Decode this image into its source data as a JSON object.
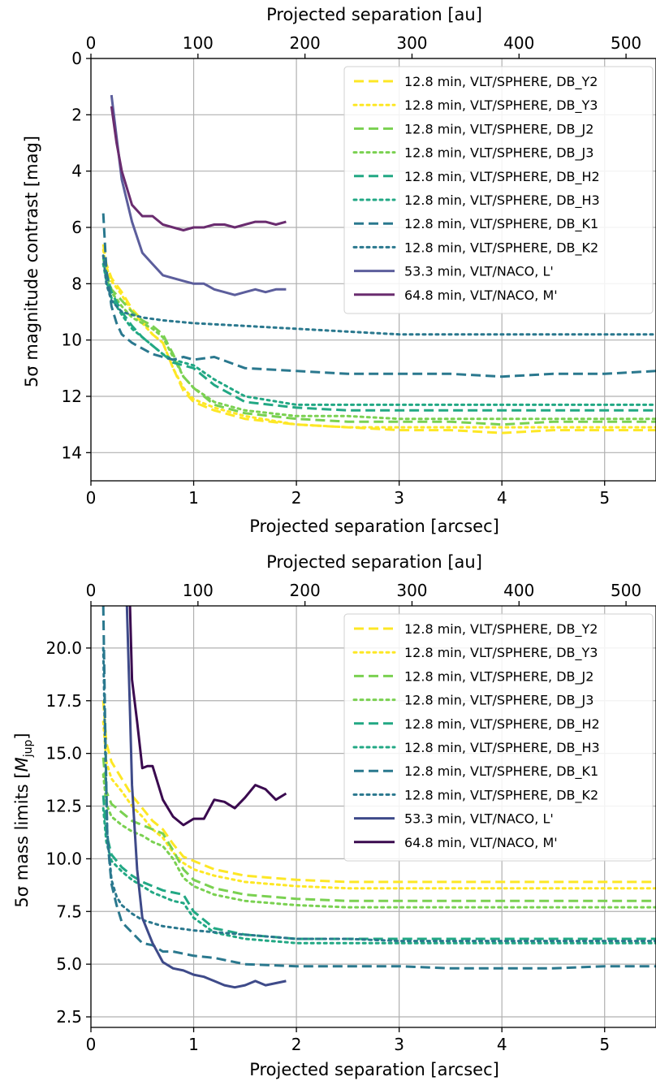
{
  "chart_data": [
    {
      "type": "line",
      "name": "contrast",
      "xlabel": "Projected separation [arcsec]",
      "x2label": "Projected separation [au]",
      "ylabel": "5σ magnitude contrast [mag]",
      "xlim": [
        0,
        5.5
      ],
      "ylim": [
        15,
        0
      ],
      "y_inverted": true,
      "x_ticks": [
        0,
        1,
        2,
        3,
        4,
        5
      ],
      "y_ticks": [
        0,
        2,
        4,
        6,
        8,
        10,
        12,
        14
      ],
      "x2_ticks": [
        0,
        100,
        200,
        300,
        400,
        500
      ],
      "au_per_arcsec": 96.0,
      "grid": true,
      "legend_position": "top-right",
      "series": [
        {
          "name": "12.8 min, VLT/SPHERE, DB_Y2",
          "color": "#fde725",
          "dash": "dashed",
          "x": [
            0.12,
            0.15,
            0.2,
            0.3,
            0.4,
            0.5,
            0.6,
            0.7,
            0.8,
            0.9,
            1.0,
            1.2,
            1.5,
            2.0,
            2.5,
            3.0,
            3.5,
            4.0,
            4.5,
            5.0,
            5.5
          ],
          "y": [
            6.6,
            7.3,
            7.8,
            8.3,
            8.9,
            9.3,
            9.8,
            10.1,
            11.0,
            11.8,
            12.2,
            12.5,
            12.8,
            13.0,
            13.1,
            13.2,
            13.2,
            13.3,
            13.2,
            13.2,
            13.2
          ]
        },
        {
          "name": "12.8 min, VLT/SPHERE, DB_Y3",
          "color": "#fde725",
          "dash": "dotted",
          "x": [
            0.12,
            0.15,
            0.2,
            0.3,
            0.4,
            0.5,
            0.6,
            0.7,
            0.8,
            0.9,
            1.0,
            1.2,
            1.5,
            2.0,
            2.5,
            3.0,
            3.5,
            4.0,
            4.5,
            5.0,
            5.5
          ],
          "y": [
            6.8,
            7.4,
            7.9,
            8.4,
            9.0,
            9.4,
            9.8,
            10.1,
            11.0,
            11.7,
            12.1,
            12.4,
            12.7,
            13.0,
            13.1,
            13.1,
            13.1,
            13.1,
            13.1,
            13.1,
            13.1
          ]
        },
        {
          "name": "12.8 min, VLT/SPHERE, DB_J2",
          "color": "#7ad151",
          "dash": "dashed",
          "x": [
            0.12,
            0.15,
            0.2,
            0.3,
            0.4,
            0.5,
            0.6,
            0.7,
            0.8,
            0.9,
            1.0,
            1.2,
            1.5,
            2.0,
            2.5,
            3.0,
            3.5,
            4.0,
            4.5,
            5.0,
            5.5
          ],
          "y": [
            7.1,
            7.6,
            8.2,
            8.6,
            9.0,
            9.3,
            9.5,
            9.8,
            10.5,
            11.3,
            11.7,
            12.3,
            12.6,
            12.8,
            12.9,
            12.9,
            12.9,
            13.0,
            12.9,
            12.9,
            12.9
          ]
        },
        {
          "name": "12.8 min, VLT/SPHERE, DB_J3",
          "color": "#7ad151",
          "dash": "dotted",
          "x": [
            0.12,
            0.15,
            0.2,
            0.3,
            0.4,
            0.5,
            0.6,
            0.7,
            0.8,
            0.9,
            1.0,
            1.2,
            1.5,
            2.0,
            2.5,
            3.0,
            3.5,
            4.0,
            4.5,
            5.0,
            5.5
          ],
          "y": [
            7.3,
            7.8,
            8.3,
            8.8,
            9.2,
            9.4,
            9.6,
            9.9,
            10.6,
            11.3,
            11.7,
            12.2,
            12.5,
            12.7,
            12.7,
            12.8,
            12.8,
            12.8,
            12.8,
            12.8,
            12.8
          ]
        },
        {
          "name": "12.8 min, VLT/SPHERE, DB_H2",
          "color": "#22a884",
          "dash": "dashed",
          "x": [
            0.12,
            0.15,
            0.2,
            0.3,
            0.4,
            0.5,
            0.6,
            0.7,
            0.8,
            0.9,
            1.0,
            1.2,
            1.5,
            2.0,
            2.5,
            3.0,
            3.5,
            4.0,
            4.5,
            5.0,
            5.5
          ],
          "y": [
            7.0,
            7.6,
            8.3,
            9.0,
            9.5,
            9.9,
            10.2,
            10.5,
            10.8,
            10.9,
            11.0,
            11.6,
            12.2,
            12.4,
            12.5,
            12.5,
            12.5,
            12.5,
            12.5,
            12.5,
            12.5
          ]
        },
        {
          "name": "12.8 min, VLT/SPHERE, DB_H3",
          "color": "#22a884",
          "dash": "dotted",
          "x": [
            0.12,
            0.15,
            0.2,
            0.3,
            0.4,
            0.5,
            0.6,
            0.7,
            0.8,
            0.9,
            1.0,
            1.2,
            1.5,
            2.0,
            2.5,
            3.0,
            3.5,
            4.0,
            4.5,
            5.0,
            5.5
          ],
          "y": [
            7.3,
            7.9,
            8.5,
            9.1,
            9.6,
            9.9,
            10.2,
            10.5,
            10.7,
            10.8,
            10.9,
            11.4,
            12.0,
            12.3,
            12.3,
            12.3,
            12.3,
            12.3,
            12.3,
            12.3,
            12.3
          ]
        },
        {
          "name": "12.8 min, VLT/SPHERE, DB_K1",
          "color": "#2a788e",
          "dash": "dashed",
          "x": [
            0.12,
            0.15,
            0.2,
            0.25,
            0.3,
            0.4,
            0.5,
            0.6,
            0.7,
            0.8,
            0.9,
            1.0,
            1.2,
            1.5,
            2.0,
            2.5,
            3.0,
            3.5,
            4.0,
            4.5,
            5.0,
            5.5
          ],
          "y": [
            5.5,
            7.5,
            8.8,
            9.4,
            9.8,
            10.1,
            10.3,
            10.5,
            10.6,
            10.7,
            10.6,
            10.7,
            10.6,
            11.0,
            11.1,
            11.2,
            11.2,
            11.2,
            11.3,
            11.2,
            11.2,
            11.1
          ]
        },
        {
          "name": "12.8 min, VLT/SPHERE, DB_K2",
          "color": "#2a788e",
          "dash": "dotted",
          "x": [
            0.12,
            0.15,
            0.2,
            0.3,
            0.4,
            0.5,
            0.7,
            1.0,
            1.5,
            2.0,
            2.5,
            3.0,
            3.5,
            4.0,
            4.5,
            5.0,
            5.5
          ],
          "y": [
            7.0,
            8.0,
            8.6,
            9.0,
            9.1,
            9.2,
            9.3,
            9.4,
            9.5,
            9.6,
            9.7,
            9.8,
            9.8,
            9.8,
            9.8,
            9.8,
            9.8
          ]
        },
        {
          "name": "53.3 min, VLT/NACO, L'",
          "color": "#5c5e9c",
          "dash": "solid",
          "x": [
            0.2,
            0.25,
            0.3,
            0.4,
            0.5,
            0.6,
            0.7,
            0.8,
            0.9,
            1.0,
            1.1,
            1.2,
            1.3,
            1.4,
            1.5,
            1.6,
            1.7,
            1.8,
            1.9
          ],
          "y": [
            1.3,
            2.8,
            4.3,
            5.8,
            6.9,
            7.3,
            7.7,
            7.8,
            7.9,
            8.0,
            8.0,
            8.2,
            8.3,
            8.4,
            8.3,
            8.2,
            8.3,
            8.2,
            8.2
          ]
        },
        {
          "name": "64.8 min, VLT/NACO, M'",
          "color": "#6a2c6f",
          "dash": "solid",
          "x": [
            0.2,
            0.25,
            0.3,
            0.4,
            0.5,
            0.6,
            0.7,
            0.8,
            0.9,
            1.0,
            1.1,
            1.2,
            1.3,
            1.4,
            1.5,
            1.6,
            1.7,
            1.8,
            1.9
          ],
          "y": [
            1.7,
            3.0,
            4.0,
            5.2,
            5.6,
            5.6,
            5.9,
            6.0,
            6.1,
            6.0,
            6.0,
            5.9,
            5.9,
            6.0,
            5.9,
            5.8,
            5.8,
            5.9,
            5.8
          ]
        }
      ]
    },
    {
      "type": "line",
      "name": "mass",
      "xlabel": "Projected separation [arcsec]",
      "x2label": "Projected separation [au]",
      "ylabel_main": "5σ mass limits [",
      "ylabel_sym": "M",
      "ylabel_sub": "jup",
      "ylabel_end": "]",
      "xlim": [
        0,
        5.5
      ],
      "ylim": [
        2,
        22
      ],
      "y_inverted": false,
      "x_ticks": [
        0,
        1,
        2,
        3,
        4,
        5
      ],
      "y_ticks": [
        2.5,
        5.0,
        7.5,
        10.0,
        12.5,
        15.0,
        17.5,
        20.0
      ],
      "x2_ticks": [
        0,
        100,
        200,
        300,
        400,
        500
      ],
      "au_per_arcsec": 96.0,
      "grid": true,
      "legend_position": "top-right",
      "series": [
        {
          "name": "12.8 min, VLT/SPHERE, DB_Y2",
          "color": "#fde725",
          "dash": "dashed",
          "x": [
            0.12,
            0.15,
            0.2,
            0.3,
            0.4,
            0.5,
            0.6,
            0.7,
            0.8,
            0.9,
            1.0,
            1.2,
            1.5,
            2.0,
            2.5,
            3.0,
            3.5,
            4.0,
            4.5,
            5.0,
            5.5
          ],
          "y": [
            17.5,
            15.5,
            14.6,
            13.8,
            13.0,
            12.4,
            11.8,
            11.4,
            10.7,
            10.1,
            9.9,
            9.5,
            9.2,
            9.0,
            8.9,
            8.9,
            8.9,
            8.9,
            8.9,
            8.9,
            8.9
          ]
        },
        {
          "name": "12.8 min, VLT/SPHERE, DB_Y3",
          "color": "#fde725",
          "dash": "dotted",
          "x": [
            0.12,
            0.15,
            0.2,
            0.3,
            0.4,
            0.5,
            0.6,
            0.7,
            0.8,
            0.9,
            1.0,
            1.2,
            1.5,
            2.0,
            2.5,
            3.0,
            3.5,
            4.0,
            4.5,
            5.0,
            5.5
          ],
          "y": [
            16.5,
            14.6,
            13.8,
            13.2,
            12.5,
            12.0,
            11.4,
            11.0,
            10.3,
            9.8,
            9.5,
            9.2,
            8.9,
            8.7,
            8.6,
            8.6,
            8.6,
            8.6,
            8.6,
            8.6,
            8.6
          ]
        },
        {
          "name": "12.8 min, VLT/SPHERE, DB_J2",
          "color": "#7ad151",
          "dash": "dashed",
          "x": [
            0.12,
            0.15,
            0.2,
            0.3,
            0.4,
            0.5,
            0.6,
            0.7,
            0.8,
            0.9,
            1.0,
            1.2,
            1.5,
            2.0,
            2.5,
            3.0,
            3.5,
            4.0,
            4.5,
            5.0,
            5.5
          ],
          "y": [
            14.8,
            13.2,
            12.6,
            12.2,
            11.8,
            11.6,
            11.4,
            11.2,
            10.4,
            9.5,
            9.0,
            8.6,
            8.3,
            8.1,
            8.0,
            8.0,
            8.0,
            8.0,
            8.0,
            8.0,
            8.0
          ]
        },
        {
          "name": "12.8 min, VLT/SPHERE, DB_J3",
          "color": "#7ad151",
          "dash": "dotted",
          "x": [
            0.12,
            0.15,
            0.2,
            0.3,
            0.4,
            0.5,
            0.6,
            0.7,
            0.8,
            0.9,
            1.0,
            1.2,
            1.5,
            2.0,
            2.5,
            3.0,
            3.5,
            4.0,
            4.5,
            5.0,
            5.5
          ],
          "y": [
            14.0,
            12.6,
            12.0,
            11.6,
            11.3,
            11.1,
            10.8,
            10.6,
            10.0,
            9.1,
            8.7,
            8.3,
            8.0,
            7.8,
            7.7,
            7.7,
            7.7,
            7.7,
            7.7,
            7.7,
            7.7
          ]
        },
        {
          "name": "12.8 min, VLT/SPHERE, DB_H2",
          "color": "#22a884",
          "dash": "dashed",
          "x": [
            0.12,
            0.15,
            0.2,
            0.3,
            0.4,
            0.5,
            0.6,
            0.7,
            0.8,
            0.9,
            1.0,
            1.2,
            1.5,
            2.0,
            2.5,
            3.0,
            3.5,
            4.0,
            4.5,
            5.0,
            5.5
          ],
          "y": [
            13.0,
            11.2,
            10.2,
            9.6,
            9.2,
            8.9,
            8.7,
            8.5,
            8.4,
            8.3,
            7.5,
            6.7,
            6.4,
            6.2,
            6.2,
            6.2,
            6.2,
            6.2,
            6.2,
            6.2,
            6.2
          ]
        },
        {
          "name": "12.8 min, VLT/SPHERE, DB_H3",
          "color": "#22a884",
          "dash": "dotted",
          "x": [
            0.12,
            0.15,
            0.2,
            0.3,
            0.4,
            0.5,
            0.6,
            0.7,
            0.8,
            0.9,
            1.0,
            1.2,
            1.5,
            2.0,
            2.5,
            3.0,
            3.5,
            4.0,
            4.5,
            5.0,
            5.5
          ],
          "y": [
            12.4,
            10.8,
            9.9,
            9.4,
            9.0,
            8.7,
            8.4,
            8.2,
            8.0,
            7.9,
            7.2,
            6.5,
            6.2,
            6.0,
            6.0,
            6.0,
            6.0,
            6.0,
            6.0,
            6.0,
            6.0
          ]
        },
        {
          "name": "12.8 min, VLT/SPHERE, DB_K1",
          "color": "#2a788e",
          "dash": "dashed",
          "x": [
            0.12,
            0.14,
            0.16,
            0.2,
            0.25,
            0.3,
            0.4,
            0.5,
            0.6,
            0.7,
            0.8,
            0.9,
            1.0,
            1.2,
            1.5,
            2.0,
            2.5,
            3.0,
            3.5,
            4.0,
            4.5,
            5.0,
            5.5
          ],
          "y": [
            22.0,
            16.0,
            11.0,
            8.8,
            7.8,
            7.0,
            6.5,
            6.0,
            5.9,
            5.6,
            5.6,
            5.5,
            5.4,
            5.3,
            5.0,
            4.9,
            4.9,
            4.9,
            4.8,
            4.8,
            4.8,
            4.9,
            4.9
          ]
        },
        {
          "name": "12.8 min, VLT/SPHERE, DB_K2",
          "color": "#2a788e",
          "dash": "dotted",
          "x": [
            0.12,
            0.14,
            0.16,
            0.2,
            0.25,
            0.3,
            0.4,
            0.5,
            0.7,
            1.0,
            1.5,
            2.0,
            2.5,
            3.0,
            3.5,
            4.0,
            4.5,
            5.0,
            5.5
          ],
          "y": [
            20.0,
            15.0,
            11.2,
            9.0,
            8.2,
            7.8,
            7.4,
            7.1,
            6.8,
            6.6,
            6.4,
            6.2,
            6.2,
            6.1,
            6.1,
            6.1,
            6.1,
            6.1,
            6.1
          ]
        },
        {
          "name": "53.3 min, VLT/NACO, L'",
          "color": "#3e4a89",
          "dash": "solid",
          "x": [
            0.35,
            0.38,
            0.4,
            0.45,
            0.5,
            0.6,
            0.7,
            0.8,
            0.9,
            1.0,
            1.1,
            1.2,
            1.3,
            1.4,
            1.5,
            1.6,
            1.7,
            1.8,
            1.9
          ],
          "y": [
            22.0,
            17.0,
            13.5,
            9.5,
            7.2,
            6.0,
            5.1,
            4.8,
            4.7,
            4.5,
            4.4,
            4.2,
            4.0,
            3.9,
            4.0,
            4.2,
            4.0,
            4.1,
            4.2
          ]
        },
        {
          "name": "64.8 min, VLT/NACO, M'",
          "color": "#3a0a4f",
          "dash": "solid",
          "x": [
            0.38,
            0.4,
            0.45,
            0.5,
            0.55,
            0.6,
            0.7,
            0.8,
            0.9,
            1.0,
            1.1,
            1.2,
            1.3,
            1.4,
            1.5,
            1.6,
            1.7,
            1.8,
            1.9
          ],
          "y": [
            22.0,
            18.5,
            16.5,
            14.3,
            14.4,
            14.4,
            12.8,
            12.0,
            11.6,
            11.9,
            11.9,
            12.8,
            12.7,
            12.4,
            12.9,
            13.5,
            13.3,
            12.8,
            13.1
          ]
        }
      ]
    }
  ]
}
